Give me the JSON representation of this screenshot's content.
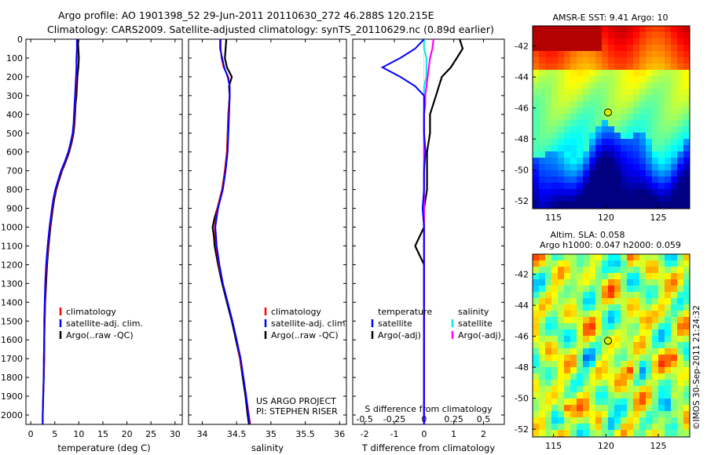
{
  "header": {
    "line1": "Argo profile: AO 1901398_52 29-Jun-2011 20110630_272 46.288S 120.215E",
    "line2": "Climatology: CARS2009. Satellite-adjusted climatology: synTS_20110629.nc (0.89d earlier)"
  },
  "colors": {
    "climatology": "#ff0000",
    "satellite": "#0000ff",
    "argo": "#000000",
    "satellite_s": "#00e8e8",
    "argo_s": "#ff00ff"
  },
  "depth_axis": {
    "ylim": [
      2050,
      0
    ],
    "ticks": [
      0,
      100,
      200,
      300,
      400,
      500,
      600,
      700,
      800,
      900,
      1000,
      1100,
      1200,
      1300,
      1400,
      1500,
      1600,
      1700,
      1800,
      1900,
      2000
    ]
  },
  "chart_data": [
    {
      "id": "temperature",
      "type": "line",
      "xlabel": "temperature (deg C)",
      "xlim": [
        -1,
        31.5
      ],
      "xticks": [
        0,
        5,
        10,
        15,
        20,
        25,
        30
      ],
      "legend": [
        "climatology",
        "satellite-adj. clim.",
        "Argo(..raw -QC)"
      ],
      "depth": [
        0,
        50,
        100,
        150,
        200,
        250,
        300,
        350,
        400,
        450,
        500,
        550,
        600,
        650,
        700,
        750,
        800,
        850,
        900,
        1000,
        1100,
        1200,
        1300,
        1400,
        1500,
        1600,
        1700,
        1800,
        1900,
        2000,
        2050
      ],
      "series": [
        {
          "name": "climatology",
          "color": "#ff0000",
          "values": [
            9.6,
            9.6,
            9.6,
            9.5,
            9.5,
            9.4,
            9.3,
            9.2,
            9.1,
            9.0,
            8.8,
            8.4,
            7.9,
            7.2,
            6.4,
            5.8,
            5.2,
            4.8,
            4.5,
            4.0,
            3.6,
            3.3,
            3.1,
            3.0,
            2.9,
            2.8,
            2.8,
            2.7,
            2.6,
            2.5,
            2.5
          ]
        },
        {
          "name": "satellite",
          "color": "#0000ff",
          "values": [
            9.6,
            9.6,
            9.5,
            9.5,
            9.4,
            9.3,
            9.2,
            9.1,
            9.0,
            8.9,
            8.7,
            8.3,
            7.8,
            7.1,
            6.3,
            5.7,
            5.1,
            4.7,
            4.4,
            3.9,
            3.5,
            3.2,
            3.0,
            2.9,
            2.8,
            2.8,
            2.7,
            2.7,
            2.6,
            2.5,
            2.5
          ]
        },
        {
          "name": "Argo",
          "color": "#000000",
          "values": [
            9.8,
            9.9,
            10.0,
            9.9,
            9.7,
            9.6,
            9.5,
            9.3,
            9.2,
            9.1,
            8.9,
            8.5,
            8.0,
            7.3,
            6.5,
            5.9,
            5.3,
            4.9,
            4.6,
            4.1,
            3.7,
            3.4,
            3.2,
            3.0,
            2.9,
            2.8,
            2.8,
            2.7,
            2.6,
            2.5,
            2.5
          ]
        }
      ]
    },
    {
      "id": "salinity",
      "type": "line",
      "xlabel": "salinity",
      "xlim": [
        33.8,
        36.1
      ],
      "xticks": [
        34,
        34.5,
        35,
        35.5,
        36
      ],
      "legend": [
        "climatology",
        "satellite-adj. clim.",
        "Argo(..raw -QC)"
      ],
      "annotation": [
        "US ARGO PROJECT",
        "PI: STEPHEN RISER"
      ],
      "depth": [
        0,
        50,
        100,
        150,
        200,
        250,
        300,
        400,
        500,
        600,
        700,
        800,
        900,
        950,
        1000,
        1050,
        1100,
        1200,
        1300,
        1400,
        1500,
        1600,
        1700,
        1800,
        1900,
        2000,
        2050
      ],
      "series": [
        {
          "name": "climatology",
          "color": "#ff0000",
          "values": [
            34.27,
            34.27,
            34.28,
            34.31,
            34.38,
            34.4,
            34.4,
            34.38,
            34.37,
            34.36,
            34.33,
            34.29,
            34.22,
            34.2,
            34.18,
            34.19,
            34.2,
            34.24,
            34.3,
            34.37,
            34.44,
            34.5,
            34.55,
            34.6,
            34.64,
            34.68,
            34.7
          ]
        },
        {
          "name": "satellite",
          "color": "#0000ff",
          "values": [
            34.26,
            34.26,
            34.29,
            34.32,
            34.37,
            34.4,
            34.4,
            34.39,
            34.38,
            34.37,
            34.34,
            34.3,
            34.23,
            34.21,
            34.19,
            34.2,
            34.21,
            34.25,
            34.3,
            34.37,
            34.44,
            34.5,
            34.56,
            34.6,
            34.64,
            34.67,
            34.69
          ]
        },
        {
          "name": "Argo",
          "color": "#000000",
          "values": [
            34.35,
            34.34,
            34.33,
            34.36,
            34.43,
            34.39,
            34.4,
            34.38,
            34.37,
            34.36,
            34.33,
            34.29,
            34.22,
            34.18,
            34.15,
            34.17,
            34.18,
            34.23,
            34.29,
            34.36,
            34.43,
            34.49,
            34.55,
            34.59,
            34.63,
            34.66,
            34.68
          ]
        }
      ]
    },
    {
      "id": "difference",
      "type": "line",
      "xlabel": "T difference from climatology",
      "toplabel": "S difference from climatology",
      "xlim": [
        -2.4,
        2.7
      ],
      "xticks": [
        -2,
        -1,
        0,
        1,
        2
      ],
      "s_ticks": [
        -0.5,
        -0.25,
        0,
        0.25,
        0.5
      ],
      "legend_t": [
        "temperature",
        "satellite",
        "Argo(-adj)"
      ],
      "legend_s": [
        "salinity",
        "satellite",
        "Argo(-adj)"
      ],
      "depth": [
        0,
        50,
        100,
        150,
        200,
        250,
        300,
        350,
        400,
        500,
        600,
        700,
        800,
        900,
        1000,
        1100,
        1200,
        1300,
        1400,
        1500,
        1600,
        1700,
        1800,
        1900,
        2000,
        2050
      ],
      "series": [
        {
          "name": "temperature satellite",
          "color": "#0000ff",
          "values": [
            0.0,
            -0.3,
            -0.8,
            -1.4,
            -0.8,
            -0.3,
            0.0,
            0.0,
            0.0,
            0.0,
            0.05,
            0.0,
            0.0,
            -0.05,
            0.0,
            0.0,
            0.0,
            0.0,
            0.0,
            0.0,
            0.0,
            0.0,
            0.0,
            0.0,
            0.0,
            0.0
          ]
        },
        {
          "name": "temperature Argo",
          "color": "#000000",
          "values": [
            1.2,
            1.3,
            1.1,
            0.9,
            0.6,
            0.5,
            0.4,
            0.3,
            0.2,
            0.2,
            0.1,
            0.1,
            0.1,
            0.0,
            0.0,
            -0.3,
            0.0,
            0.0,
            0.0,
            0.0,
            0.0,
            0.0,
            0.0,
            0.0,
            0.0,
            0.0
          ]
        },
        {
          "name": "salinity satellite",
          "color": "#00e8e8",
          "values": [
            0.0,
            0.0,
            0.02,
            0.02,
            0.02,
            0.0,
            0.0,
            0.0,
            0.0,
            0.0,
            0.0,
            0.0,
            0.0,
            0.0,
            0.0,
            0.0,
            0.0,
            0.0,
            0.0,
            0.0,
            0.0,
            0.0,
            0.0,
            0.0,
            0.0,
            0.0
          ]
        },
        {
          "name": "salinity Argo",
          "color": "#ff00ff",
          "values": [
            0.08,
            0.07,
            0.05,
            0.04,
            0.03,
            0.02,
            0.01,
            0.01,
            0.0,
            0.0,
            0.0,
            0.0,
            0.0,
            0.0,
            0.0,
            0.0,
            0.0,
            0.0,
            0.0,
            0.0,
            0.0,
            0.0,
            0.0,
            0.0,
            0.0,
            0.0
          ]
        }
      ]
    },
    {
      "id": "sst_map",
      "type": "heatmap",
      "title": "AMSR-E SST: 9.41 Argo: 10",
      "xlim": [
        113,
        128
      ],
      "ylim": [
        -52.5,
        -40.7
      ],
      "xticks": [
        115,
        120,
        125
      ],
      "yticks": [
        -42,
        -44,
        -46,
        -48,
        -50,
        -52
      ],
      "argo_point": {
        "lon": 120.2,
        "lat": -46.29
      }
    },
    {
      "id": "sla_map",
      "type": "heatmap",
      "title": "Altim. SLA: 0.058",
      "subtitle": "Argo h1000: 0.047 h2000: 0.059",
      "xlim": [
        113,
        128
      ],
      "ylim": [
        -52.5,
        -40.7
      ],
      "xticks": [
        115,
        120,
        125
      ],
      "yticks": [
        -42,
        -44,
        -46,
        -48,
        -50,
        -52
      ],
      "argo_point": {
        "lon": 120.2,
        "lat": -46.29
      }
    }
  ],
  "credit": "©IMOS 30-Sep-2011 21:24:32"
}
